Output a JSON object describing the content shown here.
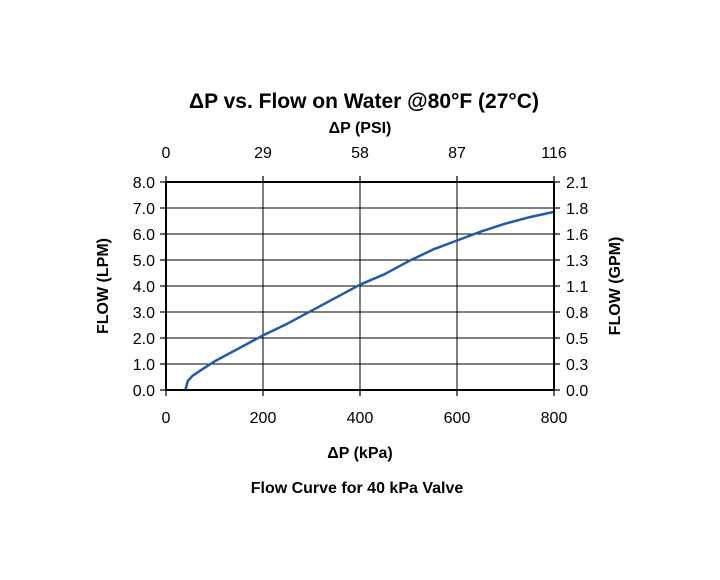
{
  "chart_data": {
    "type": "line",
    "title": "ΔP vs. Flow on Water @80°F (27°C)",
    "top_axis": {
      "label": "ΔP (PSI)",
      "ticks": [
        "0",
        "29",
        "58",
        "87",
        "116"
      ]
    },
    "xlabel": "ΔP (kPa)",
    "xlim": [
      0,
      800
    ],
    "x_ticks": [
      "0",
      "200",
      "400",
      "600",
      "800"
    ],
    "ylabel": "FLOW (LPM)",
    "ylim": [
      0,
      8
    ],
    "y_ticks": [
      "0.0",
      "1.0",
      "2.0",
      "3.0",
      "4.0",
      "5.0",
      "6.0",
      "7.0",
      "8.0"
    ],
    "right_axis": {
      "label": "FLOW (GPM)",
      "ticks": [
        "0.0",
        "0.3",
        "0.5",
        "0.8",
        "1.1",
        "1.3",
        "1.6",
        "1.8",
        "2.1"
      ]
    },
    "grid": true,
    "caption": "Flow Curve for 40 kPa Valve",
    "series": [
      {
        "color": "#1f5ba8",
        "points": [
          [
            40,
            0.0
          ],
          [
            45,
            0.35
          ],
          [
            55,
            0.55
          ],
          [
            75,
            0.8
          ],
          [
            100,
            1.1
          ],
          [
            150,
            1.6
          ],
          [
            200,
            2.1
          ],
          [
            250,
            2.55
          ],
          [
            300,
            3.05
          ],
          [
            350,
            3.55
          ],
          [
            400,
            4.05
          ],
          [
            450,
            4.45
          ],
          [
            500,
            4.95
          ],
          [
            550,
            5.4
          ],
          [
            600,
            5.75
          ],
          [
            650,
            6.1
          ],
          [
            700,
            6.4
          ],
          [
            750,
            6.65
          ],
          [
            800,
            6.85
          ]
        ]
      }
    ]
  }
}
